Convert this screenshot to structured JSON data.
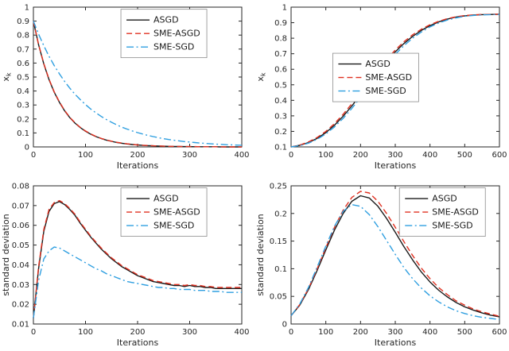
{
  "figure": {
    "background": "#ffffff",
    "text_color": "#262626",
    "axis_color": "#262626",
    "legend_border_color": "#8c8c8c"
  },
  "chart_data": [
    {
      "type": "line",
      "title": "",
      "xlabel": "Iterations",
      "ylabel": "x_k",
      "xlim": [
        0,
        400
      ],
      "ylim": [
        0,
        1
      ],
      "xticks": [
        0,
        100,
        200,
        300,
        400
      ],
      "yticks": [
        0,
        0.1,
        0.2,
        0.3,
        0.4,
        0.5,
        0.6,
        0.7,
        0.8,
        0.9,
        1
      ],
      "yticklabels": [
        "0",
        "0.1",
        "0.2",
        "0.3",
        "0.4",
        "0.5",
        "0.6",
        "0.7",
        "0.8",
        "0.9",
        "1"
      ],
      "grid": false,
      "legend": {
        "position": "upper-center-right",
        "fx": 0.42,
        "fy": 0.015
      },
      "series": [
        {
          "name": "ASGD",
          "color": "#1a1a1a",
          "dash": "solid",
          "x": [
            0,
            10,
            20,
            30,
            40,
            50,
            60,
            70,
            80,
            90,
            100,
            110,
            120,
            130,
            140,
            150,
            160,
            170,
            180,
            190,
            200,
            210,
            220,
            230,
            240,
            250,
            260,
            270,
            280,
            290,
            300,
            310,
            320,
            330,
            340,
            350,
            360,
            370,
            380,
            390,
            400
          ],
          "y": [
            0.9,
            0.731,
            0.593,
            0.482,
            0.391,
            0.318,
            0.258,
            0.209,
            0.17,
            0.138,
            0.112,
            0.091,
            0.074,
            0.06,
            0.049,
            0.04,
            0.032,
            0.026,
            0.021,
            0.017,
            0.014,
            0.011,
            0.009,
            0.008,
            0.006,
            0.005,
            0.004,
            0.003,
            0.003,
            0.002,
            0.002,
            0.001,
            0.001,
            0.001,
            0.001,
            0.001,
            0.0,
            0.0,
            0.0,
            0.0,
            0.0
          ]
        },
        {
          "name": "SME-ASGD",
          "color": "#e03020",
          "dash": "dashed",
          "x": [
            0,
            10,
            20,
            30,
            40,
            50,
            60,
            70,
            80,
            90,
            100,
            110,
            120,
            130,
            140,
            150,
            160,
            170,
            180,
            190,
            200,
            210,
            220,
            230,
            240,
            250,
            260,
            270,
            280,
            290,
            300,
            310,
            320,
            330,
            340,
            350,
            360,
            370,
            380,
            390,
            400
          ],
          "y": [
            0.9,
            0.733,
            0.596,
            0.485,
            0.394,
            0.321,
            0.261,
            0.212,
            0.172,
            0.14,
            0.114,
            0.093,
            0.075,
            0.061,
            0.05,
            0.041,
            0.033,
            0.027,
            0.022,
            0.018,
            0.014,
            0.012,
            0.01,
            0.008,
            0.007,
            0.005,
            0.004,
            0.004,
            0.003,
            0.002,
            0.002,
            0.002,
            0.001,
            0.001,
            0.001,
            0.001,
            0.001,
            0.0,
            0.0,
            0.0,
            0.0
          ]
        },
        {
          "name": "SME-SGD",
          "color": "#2f9fe0",
          "dash": "dashdot",
          "x": [
            0,
            10,
            20,
            30,
            40,
            50,
            60,
            70,
            80,
            90,
            100,
            110,
            120,
            130,
            140,
            150,
            160,
            170,
            180,
            190,
            200,
            210,
            220,
            230,
            240,
            250,
            260,
            270,
            280,
            290,
            300,
            310,
            320,
            330,
            340,
            350,
            360,
            370,
            380,
            390,
            400
          ],
          "y": [
            0.9,
            0.807,
            0.724,
            0.649,
            0.582,
            0.522,
            0.468,
            0.42,
            0.376,
            0.338,
            0.303,
            0.271,
            0.244,
            0.218,
            0.196,
            0.176,
            0.158,
            0.141,
            0.127,
            0.114,
            0.102,
            0.092,
            0.082,
            0.074,
            0.066,
            0.059,
            0.053,
            0.048,
            0.043,
            0.038,
            0.035,
            0.031,
            0.028,
            0.025,
            0.022,
            0.02,
            0.018,
            0.016,
            0.015,
            0.013,
            0.012
          ]
        }
      ]
    },
    {
      "type": "line",
      "title": "",
      "xlabel": "Iterations",
      "ylabel": "x_k",
      "xlim": [
        0,
        600
      ],
      "ylim": [
        0.1,
        1
      ],
      "xticks": [
        0,
        100,
        200,
        300,
        400,
        500,
        600
      ],
      "yticks": [
        0.1,
        0.2,
        0.3,
        0.4,
        0.5,
        0.6,
        0.7,
        0.8,
        0.9,
        1
      ],
      "yticklabels": [
        "0.1",
        "0.2",
        "0.3",
        "0.4",
        "0.5",
        "0.6",
        "0.7",
        "0.8",
        "0.9",
        "1"
      ],
      "grid": false,
      "legend": {
        "position": "middle-left",
        "fx": 0.2,
        "fy": 0.33
      },
      "series": [
        {
          "name": "ASGD",
          "color": "#1a1a1a",
          "dash": "solid",
          "x": [
            0,
            25,
            50,
            75,
            100,
            125,
            150,
            175,
            200,
            225,
            250,
            275,
            300,
            325,
            350,
            375,
            400,
            425,
            450,
            475,
            500,
            525,
            550,
            575,
            600
          ],
          "y": [
            0.1,
            0.11,
            0.128,
            0.155,
            0.192,
            0.24,
            0.298,
            0.364,
            0.436,
            0.51,
            0.582,
            0.65,
            0.712,
            0.766,
            0.812,
            0.85,
            0.881,
            0.905,
            0.923,
            0.936,
            0.944,
            0.949,
            0.952,
            0.953,
            0.954
          ]
        },
        {
          "name": "SME-ASGD",
          "color": "#e03020",
          "dash": "dashed",
          "x": [
            0,
            25,
            50,
            75,
            100,
            125,
            150,
            175,
            200,
            225,
            250,
            275,
            300,
            325,
            350,
            375,
            400,
            425,
            450,
            475,
            500,
            525,
            550,
            575,
            600
          ],
          "y": [
            0.1,
            0.112,
            0.132,
            0.161,
            0.2,
            0.25,
            0.31,
            0.378,
            0.45,
            0.524,
            0.596,
            0.663,
            0.724,
            0.777,
            0.822,
            0.858,
            0.887,
            0.909,
            0.926,
            0.938,
            0.946,
            0.95,
            0.953,
            0.954,
            0.955
          ]
        },
        {
          "name": "SME-SGD",
          "color": "#2f9fe0",
          "dash": "dashdot",
          "x": [
            0,
            25,
            50,
            75,
            100,
            125,
            150,
            175,
            200,
            225,
            250,
            275,
            300,
            325,
            350,
            375,
            400,
            425,
            450,
            475,
            500,
            525,
            550,
            575,
            600
          ],
          "y": [
            0.1,
            0.108,
            0.124,
            0.149,
            0.184,
            0.229,
            0.284,
            0.348,
            0.418,
            0.491,
            0.563,
            0.632,
            0.696,
            0.752,
            0.8,
            0.84,
            0.873,
            0.898,
            0.917,
            0.931,
            0.941,
            0.947,
            0.95,
            0.952,
            0.953
          ]
        }
      ]
    },
    {
      "type": "line",
      "title": "",
      "xlabel": "Iterations",
      "ylabel": "standard deviation",
      "xlim": [
        0,
        400
      ],
      "ylim": [
        0.01,
        0.08
      ],
      "xticks": [
        0,
        100,
        200,
        300,
        400
      ],
      "yticks": [
        0.01,
        0.02,
        0.03,
        0.04,
        0.05,
        0.06,
        0.07,
        0.08
      ],
      "yticklabels": [
        "0.01",
        "0.02",
        "0.03",
        "0.04",
        "0.05",
        "0.06",
        "0.07",
        "0.08"
      ],
      "grid": false,
      "legend": {
        "position": "upper-center-right",
        "fx": 0.42,
        "fy": 0.015
      },
      "series": [
        {
          "name": "ASGD",
          "color": "#1a1a1a",
          "dash": "solid",
          "x": [
            0,
            10,
            20,
            30,
            40,
            50,
            60,
            70,
            80,
            90,
            100,
            110,
            120,
            130,
            140,
            150,
            160,
            170,
            180,
            190,
            200,
            210,
            220,
            230,
            240,
            250,
            260,
            270,
            280,
            290,
            300,
            310,
            320,
            330,
            340,
            350,
            360,
            370,
            380,
            390,
            400
          ],
          "y": [
            0.013,
            0.038,
            0.057,
            0.067,
            0.071,
            0.072,
            0.0705,
            0.068,
            0.065,
            0.061,
            0.0575,
            0.054,
            0.051,
            0.048,
            0.0455,
            0.043,
            0.041,
            0.039,
            0.0375,
            0.036,
            0.0345,
            0.0335,
            0.0325,
            0.0315,
            0.031,
            0.0305,
            0.03,
            0.0295,
            0.0295,
            0.029,
            0.0295,
            0.029,
            0.029,
            0.0285,
            0.0285,
            0.028,
            0.028,
            0.028,
            0.028,
            0.028,
            0.028
          ]
        },
        {
          "name": "SME-ASGD",
          "color": "#e03020",
          "dash": "dashed",
          "x": [
            0,
            10,
            20,
            30,
            40,
            50,
            60,
            70,
            80,
            90,
            100,
            110,
            120,
            130,
            140,
            150,
            160,
            170,
            180,
            190,
            200,
            210,
            220,
            230,
            240,
            250,
            260,
            270,
            280,
            290,
            300,
            310,
            320,
            330,
            340,
            350,
            360,
            370,
            380,
            390,
            400
          ],
          "y": [
            0.013,
            0.039,
            0.058,
            0.068,
            0.0715,
            0.0725,
            0.071,
            0.0685,
            0.0655,
            0.0615,
            0.058,
            0.0545,
            0.0515,
            0.0485,
            0.046,
            0.0435,
            0.0415,
            0.0395,
            0.038,
            0.0365,
            0.035,
            0.034,
            0.033,
            0.032,
            0.0315,
            0.031,
            0.0305,
            0.03,
            0.03,
            0.0295,
            0.03,
            0.0295,
            0.0295,
            0.029,
            0.029,
            0.0285,
            0.0285,
            0.0285,
            0.0285,
            0.0285,
            0.0285
          ]
        },
        {
          "name": "SME-SGD",
          "color": "#2f9fe0",
          "dash": "dashdot",
          "x": [
            0,
            10,
            20,
            30,
            40,
            50,
            60,
            70,
            80,
            90,
            100,
            110,
            120,
            130,
            140,
            150,
            160,
            170,
            180,
            190,
            200,
            210,
            220,
            230,
            240,
            250,
            260,
            270,
            280,
            290,
            300,
            310,
            320,
            330,
            340,
            350,
            360,
            370,
            380,
            390,
            400
          ],
          "y": [
            0.013,
            0.032,
            0.043,
            0.047,
            0.049,
            0.0485,
            0.047,
            0.0455,
            0.044,
            0.0425,
            0.041,
            0.0395,
            0.038,
            0.037,
            0.0355,
            0.0345,
            0.0335,
            0.0325,
            0.0315,
            0.031,
            0.0305,
            0.03,
            0.0295,
            0.029,
            0.0285,
            0.0285,
            0.028,
            0.028,
            0.0275,
            0.0275,
            0.0275,
            0.027,
            0.027,
            0.027,
            0.0265,
            0.0265,
            0.0265,
            0.026,
            0.026,
            0.026,
            0.026
          ]
        }
      ]
    },
    {
      "type": "line",
      "title": "",
      "xlabel": "Iterations",
      "ylabel": "standard deviation",
      "xlim": [
        0,
        600
      ],
      "ylim": [
        0,
        0.25
      ],
      "xticks": [
        0,
        100,
        200,
        300,
        400,
        500,
        600
      ],
      "yticks": [
        0,
        0.05,
        0.1,
        0.15,
        0.2,
        0.25
      ],
      "yticklabels": [
        "0",
        "0.05",
        "0.1",
        "0.15",
        "0.2",
        "0.25"
      ],
      "grid": false,
      "legend": {
        "position": "upper-right",
        "fx": 0.52,
        "fy": 0.015
      },
      "series": [
        {
          "name": "ASGD",
          "color": "#1a1a1a",
          "dash": "solid",
          "x": [
            0,
            25,
            50,
            75,
            100,
            125,
            150,
            175,
            200,
            225,
            250,
            275,
            300,
            325,
            350,
            375,
            400,
            425,
            450,
            475,
            500,
            525,
            550,
            575,
            600
          ],
          "y": [
            0.015,
            0.034,
            0.062,
            0.097,
            0.134,
            0.17,
            0.2,
            0.222,
            0.232,
            0.228,
            0.213,
            0.191,
            0.166,
            0.14,
            0.116,
            0.094,
            0.076,
            0.061,
            0.049,
            0.039,
            0.031,
            0.025,
            0.02,
            0.016,
            0.013
          ]
        },
        {
          "name": "SME-ASGD",
          "color": "#e03020",
          "dash": "dashed",
          "x": [
            0,
            25,
            50,
            75,
            100,
            125,
            150,
            175,
            200,
            225,
            250,
            275,
            300,
            325,
            350,
            375,
            400,
            425,
            450,
            475,
            500,
            525,
            550,
            575,
            600
          ],
          "y": [
            0.015,
            0.035,
            0.064,
            0.1,
            0.138,
            0.175,
            0.206,
            0.229,
            0.24,
            0.237,
            0.222,
            0.2,
            0.175,
            0.149,
            0.124,
            0.101,
            0.082,
            0.066,
            0.053,
            0.042,
            0.034,
            0.027,
            0.022,
            0.018,
            0.014
          ]
        },
        {
          "name": "SME-SGD",
          "color": "#2f9fe0",
          "dash": "dashdot",
          "x": [
            0,
            25,
            50,
            75,
            100,
            125,
            150,
            175,
            200,
            225,
            250,
            275,
            300,
            325,
            350,
            375,
            400,
            425,
            450,
            475,
            500,
            525,
            550,
            575,
            600
          ],
          "y": [
            0.015,
            0.036,
            0.066,
            0.103,
            0.141,
            0.177,
            0.204,
            0.216,
            0.213,
            0.198,
            0.176,
            0.151,
            0.126,
            0.102,
            0.082,
            0.065,
            0.051,
            0.04,
            0.031,
            0.024,
            0.019,
            0.015,
            0.012,
            0.01,
            0.008
          ]
        }
      ]
    }
  ]
}
